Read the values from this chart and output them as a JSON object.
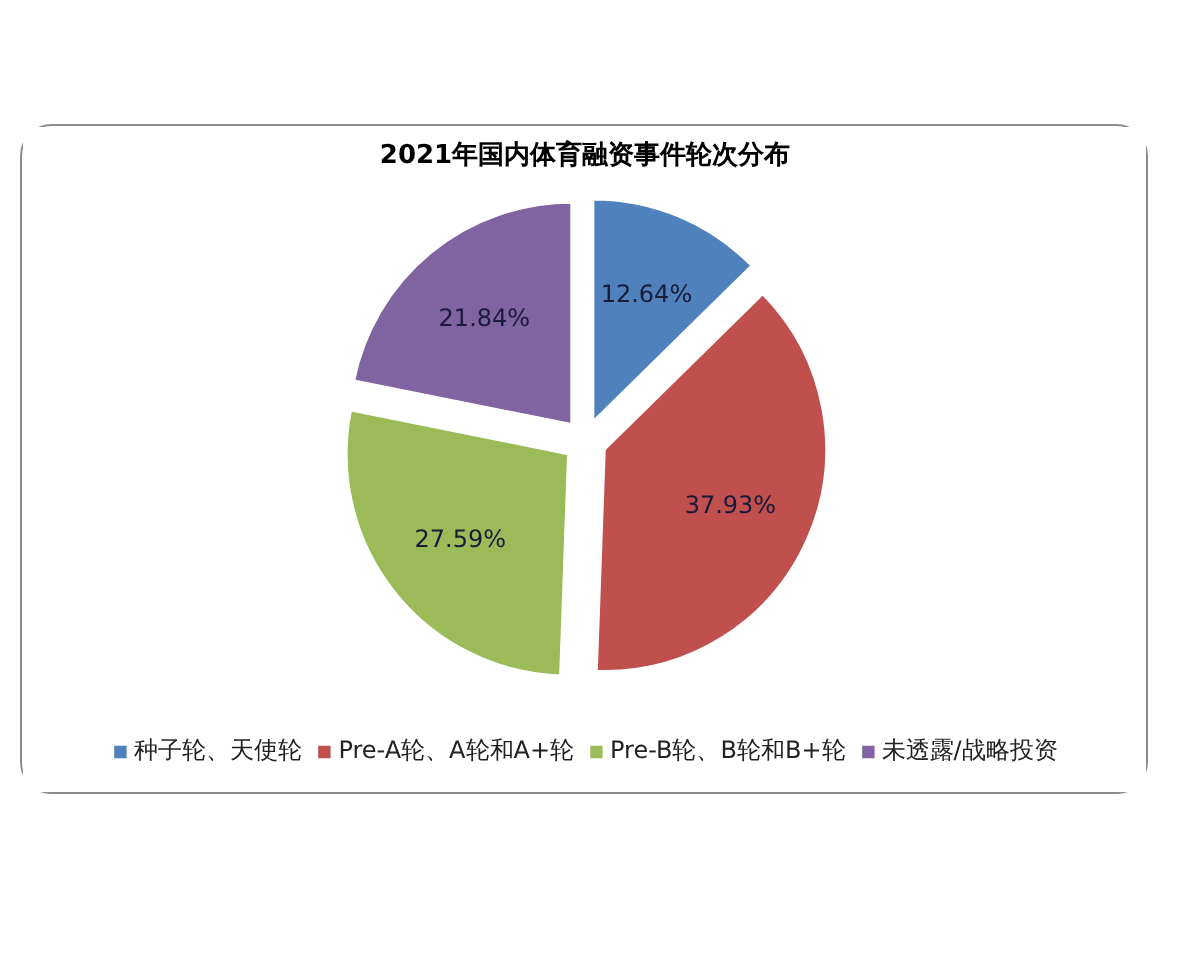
{
  "chart_data": {
    "type": "pie",
    "title": "2021年国内体育融资事件轮次分布",
    "categories": [
      "种子轮、天使轮",
      "Pre-A轮、A轮和A+轮",
      "Pre-B轮、B轮和B+轮",
      "未透露/战略投资"
    ],
    "values": [
      12.64,
      37.93,
      27.59,
      21.84
    ],
    "colors": [
      "#4f81bd",
      "#c0504d",
      "#9bbb59",
      "#8064a2"
    ],
    "value_labels": [
      "12.64%",
      "37.93%",
      "27.59%",
      "21.84%"
    ],
    "legend": "bottom"
  }
}
